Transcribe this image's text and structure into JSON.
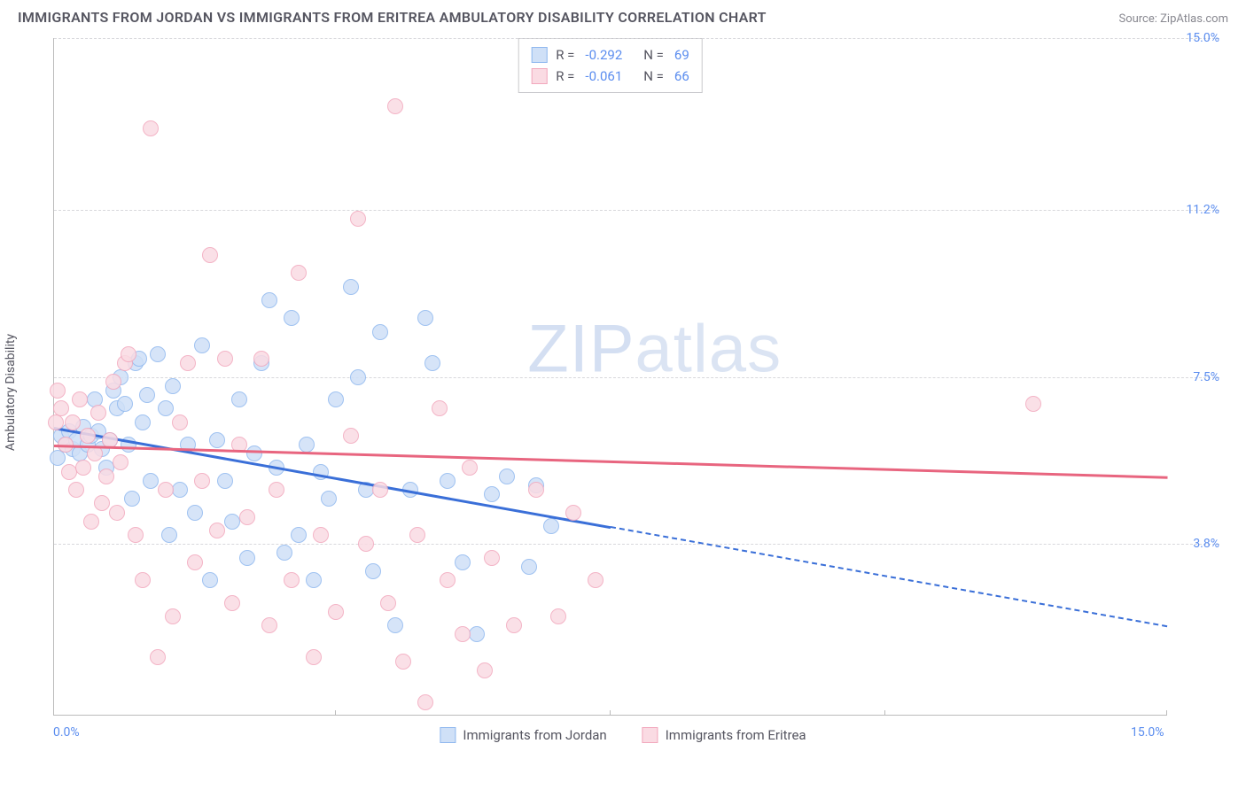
{
  "title": "IMMIGRANTS FROM JORDAN VS IMMIGRANTS FROM ERITREA AMBULATORY DISABILITY CORRELATION CHART",
  "source": "Source: ZipAtlas.com",
  "y_axis_label": "Ambulatory Disability",
  "watermark_a": "ZIP",
  "watermark_b": "atlas",
  "chart": {
    "type": "scatter",
    "xlim": [
      0,
      15
    ],
    "ylim": [
      0,
      15
    ],
    "x_ticks": [
      0,
      3.8,
      7.5,
      11.2,
      15
    ],
    "y_ticks": [
      3.8,
      7.5,
      11.2,
      15
    ],
    "x_tick_labels": [
      "0.0%",
      "",
      "",
      "",
      "15.0%"
    ],
    "y_tick_labels": [
      "3.8%",
      "7.5%",
      "11.2%",
      "15.0%"
    ],
    "grid_color": "#d8d8dc",
    "axis_color": "#bbbbbb",
    "background": "#ffffff",
    "tick_label_color": "#5b8def",
    "marker_radius": 9,
    "marker_stroke_width": 1.2,
    "series": [
      {
        "name": "Immigrants from Jordan",
        "fill": "#cfe0f7",
        "stroke": "#8fb8ef",
        "line_color": "#3a6fd8",
        "R": "-0.292",
        "N": "69",
        "trend": {
          "x1": 0,
          "y1": 6.4,
          "x2": 7.5,
          "y2": 4.2,
          "x2_ext": 15,
          "y2_ext": 2.0
        },
        "points": [
          [
            0.1,
            6.2
          ],
          [
            0.15,
            6.0
          ],
          [
            0.2,
            6.3
          ],
          [
            0.25,
            5.9
          ],
          [
            0.3,
            6.1
          ],
          [
            0.35,
            5.8
          ],
          [
            0.4,
            6.4
          ],
          [
            0.45,
            6.0
          ],
          [
            0.5,
            6.2
          ],
          [
            0.55,
            7.0
          ],
          [
            0.6,
            6.3
          ],
          [
            0.65,
            5.9
          ],
          [
            0.7,
            5.5
          ],
          [
            0.75,
            6.1
          ],
          [
            0.8,
            7.2
          ],
          [
            0.85,
            6.8
          ],
          [
            0.9,
            7.5
          ],
          [
            0.95,
            6.9
          ],
          [
            1.0,
            6.0
          ],
          [
            1.05,
            4.8
          ],
          [
            1.1,
            7.8
          ],
          [
            1.15,
            7.9
          ],
          [
            1.2,
            6.5
          ],
          [
            1.25,
            7.1
          ],
          [
            1.3,
            5.2
          ],
          [
            1.4,
            8.0
          ],
          [
            1.5,
            6.8
          ],
          [
            1.55,
            4.0
          ],
          [
            1.6,
            7.3
          ],
          [
            1.7,
            5.0
          ],
          [
            1.8,
            6.0
          ],
          [
            1.9,
            4.5
          ],
          [
            2.0,
            8.2
          ],
          [
            2.1,
            3.0
          ],
          [
            2.2,
            6.1
          ],
          [
            2.3,
            5.2
          ],
          [
            2.4,
            4.3
          ],
          [
            2.5,
            7.0
          ],
          [
            2.6,
            3.5
          ],
          [
            2.7,
            5.8
          ],
          [
            2.8,
            7.8
          ],
          [
            2.9,
            9.2
          ],
          [
            3.0,
            5.5
          ],
          [
            3.1,
            3.6
          ],
          [
            3.2,
            8.8
          ],
          [
            3.3,
            4.0
          ],
          [
            3.4,
            6.0
          ],
          [
            3.5,
            3.0
          ],
          [
            3.6,
            5.4
          ],
          [
            3.7,
            4.8
          ],
          [
            3.8,
            7.0
          ],
          [
            4.0,
            9.5
          ],
          [
            4.1,
            7.5
          ],
          [
            4.2,
            5.0
          ],
          [
            4.3,
            3.2
          ],
          [
            4.4,
            8.5
          ],
          [
            4.6,
            2.0
          ],
          [
            4.8,
            5.0
          ],
          [
            5.0,
            8.8
          ],
          [
            5.1,
            7.8
          ],
          [
            5.3,
            5.2
          ],
          [
            5.5,
            3.4
          ],
          [
            5.7,
            1.8
          ],
          [
            5.9,
            4.9
          ],
          [
            6.1,
            5.3
          ],
          [
            6.4,
            3.3
          ],
          [
            6.5,
            5.1
          ],
          [
            6.7,
            4.2
          ],
          [
            0.05,
            5.7
          ]
        ]
      },
      {
        "name": "Immigrants from Eritrea",
        "fill": "#fadbe3",
        "stroke": "#f2a8bd",
        "line_color": "#e8657f",
        "R": "-0.061",
        "N": "66",
        "trend": {
          "x1": 0,
          "y1": 6.0,
          "x2": 15,
          "y2": 5.3
        },
        "points": [
          [
            0.05,
            7.2
          ],
          [
            0.1,
            6.8
          ],
          [
            0.15,
            6.0
          ],
          [
            0.2,
            5.4
          ],
          [
            0.25,
            6.5
          ],
          [
            0.3,
            5.0
          ],
          [
            0.35,
            7.0
          ],
          [
            0.4,
            5.5
          ],
          [
            0.45,
            6.2
          ],
          [
            0.5,
            4.3
          ],
          [
            0.55,
            5.8
          ],
          [
            0.6,
            6.7
          ],
          [
            0.65,
            4.7
          ],
          [
            0.7,
            5.3
          ],
          [
            0.75,
            6.1
          ],
          [
            0.8,
            7.4
          ],
          [
            0.85,
            4.5
          ],
          [
            0.9,
            5.6
          ],
          [
            0.95,
            7.8
          ],
          [
            1.0,
            8.0
          ],
          [
            1.1,
            4.0
          ],
          [
            1.2,
            3.0
          ],
          [
            1.3,
            13.0
          ],
          [
            1.4,
            1.3
          ],
          [
            1.5,
            5.0
          ],
          [
            1.6,
            2.2
          ],
          [
            1.7,
            6.5
          ],
          [
            1.8,
            7.8
          ],
          [
            1.9,
            3.4
          ],
          [
            2.0,
            5.2
          ],
          [
            2.1,
            10.2
          ],
          [
            2.2,
            4.1
          ],
          [
            2.3,
            7.9
          ],
          [
            2.4,
            2.5
          ],
          [
            2.5,
            6.0
          ],
          [
            2.6,
            4.4
          ],
          [
            2.8,
            7.9
          ],
          [
            2.9,
            2.0
          ],
          [
            3.0,
            5.0
          ],
          [
            3.2,
            3.0
          ],
          [
            3.3,
            9.8
          ],
          [
            3.5,
            1.3
          ],
          [
            3.6,
            4.0
          ],
          [
            3.8,
            2.3
          ],
          [
            4.0,
            6.2
          ],
          [
            4.1,
            11.0
          ],
          [
            4.2,
            3.8
          ],
          [
            4.4,
            5.0
          ],
          [
            4.5,
            2.5
          ],
          [
            4.6,
            13.5
          ],
          [
            4.7,
            1.2
          ],
          [
            4.9,
            4.0
          ],
          [
            5.0,
            0.3
          ],
          [
            5.2,
            6.8
          ],
          [
            5.3,
            3.0
          ],
          [
            5.5,
            1.8
          ],
          [
            5.6,
            5.5
          ],
          [
            5.8,
            1.0
          ],
          [
            5.9,
            3.5
          ],
          [
            6.2,
            2.0
          ],
          [
            6.5,
            5.0
          ],
          [
            6.8,
            2.2
          ],
          [
            7.0,
            4.5
          ],
          [
            7.3,
            3.0
          ],
          [
            13.2,
            6.9
          ],
          [
            0.02,
            6.5
          ]
        ]
      }
    ]
  },
  "stats_box": {
    "r_label": "R =",
    "n_label": "N ="
  },
  "legend": {
    "items": [
      "Immigrants from Jordan",
      "Immigrants from Eritrea"
    ]
  }
}
